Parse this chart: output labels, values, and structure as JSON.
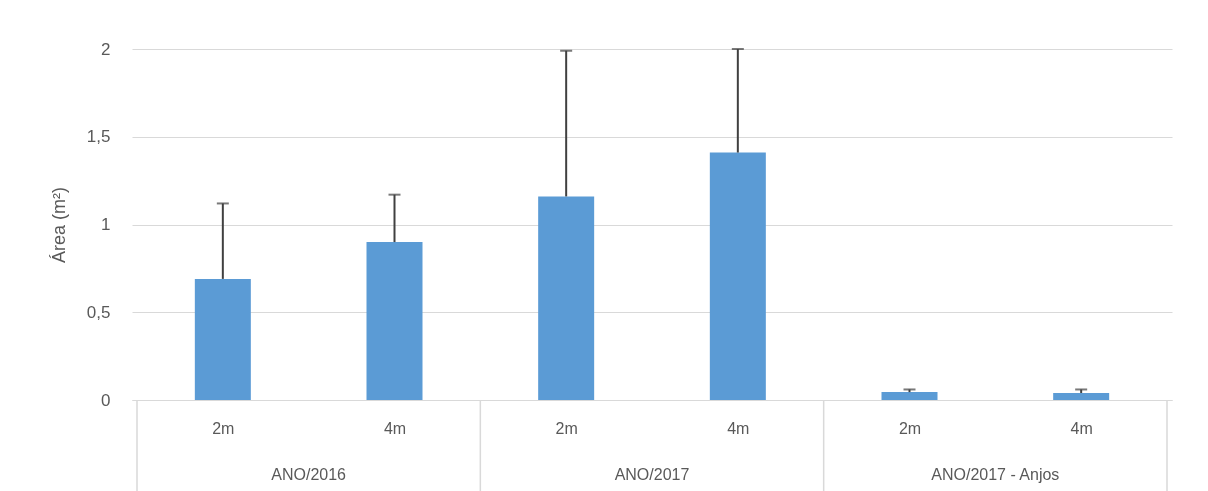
{
  "chart_data": {
    "type": "bar",
    "ylabel": "Área (m²)",
    "categories": [
      "2m",
      "4m",
      "2m",
      "4m",
      "2m",
      "4m"
    ],
    "values": [
      0.69,
      0.9,
      1.16,
      1.41,
      0.045,
      0.04
    ],
    "errors": [
      [
        0.69,
        1.12
      ],
      [
        0.9,
        1.17
      ],
      [
        1.16,
        1.99
      ],
      [
        1.41,
        2.0
      ],
      [
        0.045,
        0.06
      ],
      [
        0.04,
        0.06
      ]
    ],
    "color": "#5b9bd5",
    "ylim": [
      0,
      2
    ],
    "yticks": [
      0,
      {
        "value": 0.5,
        "label": "0,5"
      },
      1,
      {
        "value": 1.5,
        "label": "1,5"
      },
      2
    ],
    "grid": "y",
    "annotations": [
      "ANO/2016",
      "ANO/2017",
      "ANO/2017 - Anjos"
    ]
  }
}
